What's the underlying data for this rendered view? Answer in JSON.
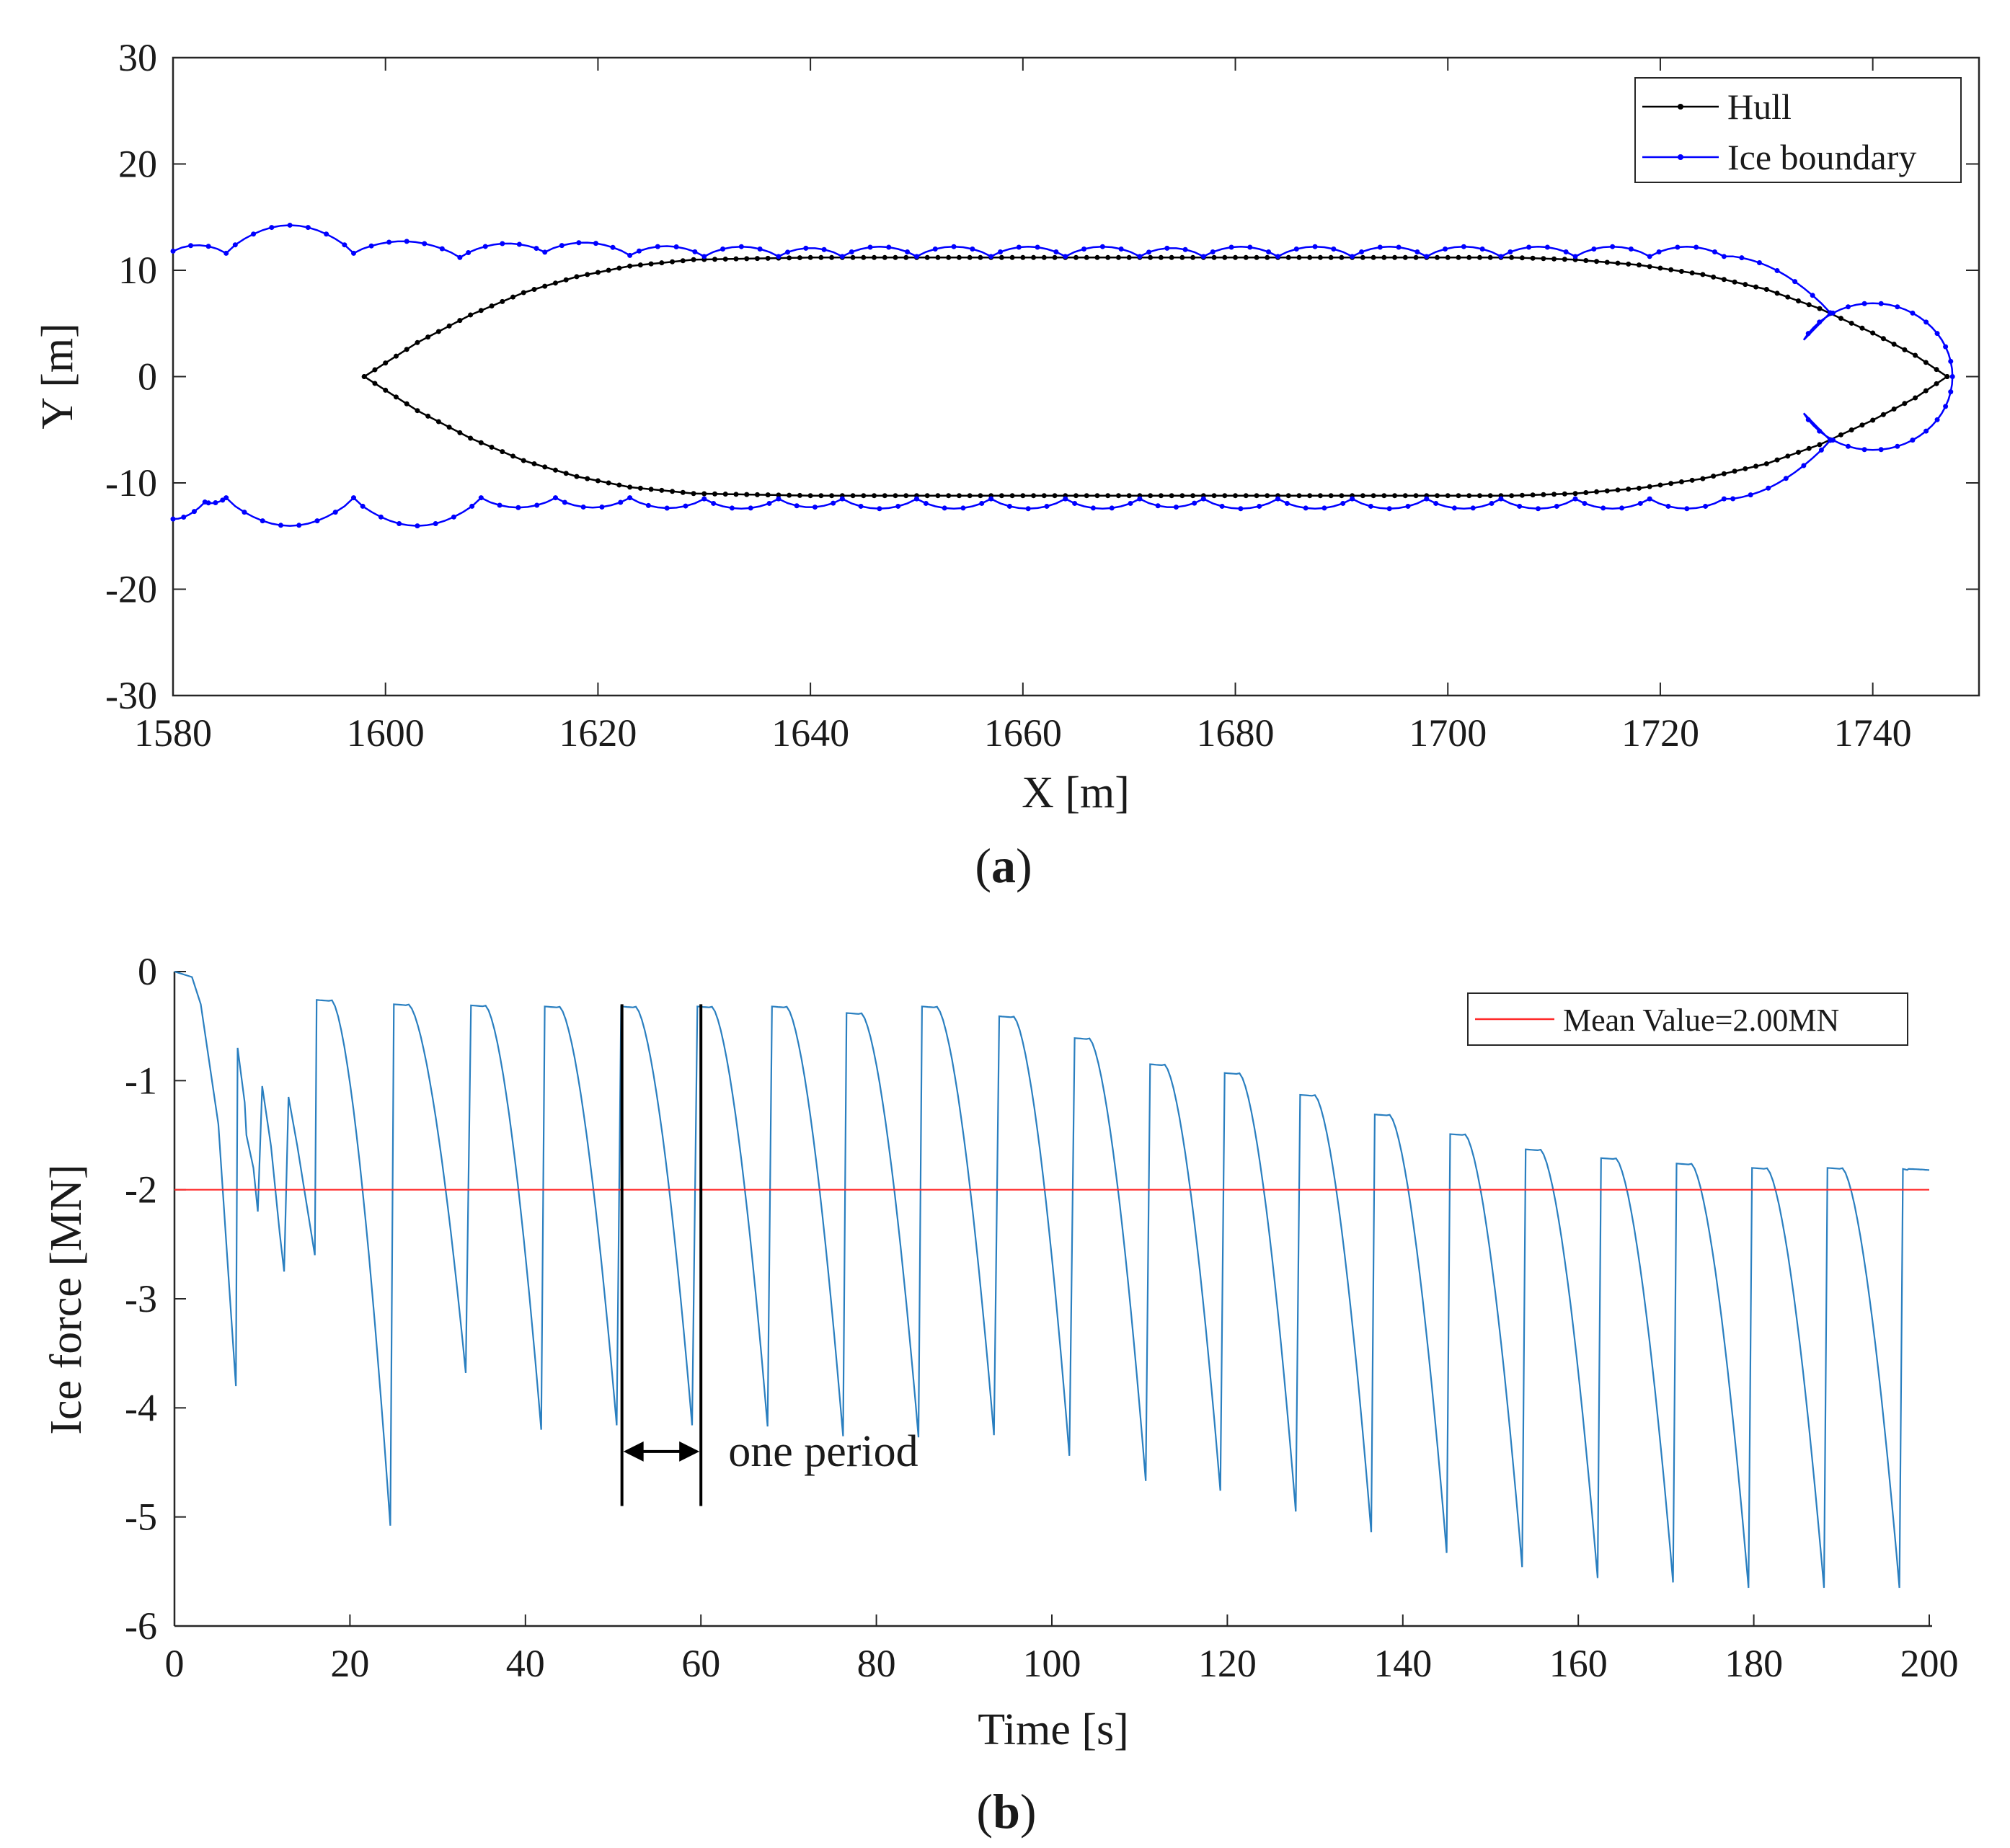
{
  "chart_data": [
    {
      "id": "a",
      "type": "line",
      "panel_label_open": "(",
      "panel_label_letter": "a",
      "panel_label_close": ")",
      "xlabel": "X [m]",
      "ylabel": "Y [m]",
      "xlim": [
        1580,
        1750
      ],
      "ylim": [
        -30,
        30
      ],
      "xticks": [
        1580,
        1600,
        1620,
        1640,
        1660,
        1680,
        1700,
        1720,
        1740
      ],
      "yticks": [
        -30,
        -20,
        -10,
        0,
        10,
        20,
        30
      ],
      "legend_position": "top-right",
      "series": [
        {
          "name": "Hull",
          "color": "#000000",
          "markers": true,
          "description": "Symmetric hull outline: pointed stern at x=1598, parallel mid-body at |y|=11.2 from x=1629 to x=1706, pointed bow at x=1747",
          "upper_points": [
            [
              1598,
              0
            ],
            [
              1603,
              3.2
            ],
            [
              1608,
              5.8
            ],
            [
              1613,
              7.9
            ],
            [
              1618,
              9.4
            ],
            [
              1623,
              10.4
            ],
            [
              1629,
              11.0
            ],
            [
              1640,
              11.2
            ],
            [
              1706,
              11.2
            ],
            [
              1712,
              11.0
            ],
            [
              1718,
              10.5
            ],
            [
              1724,
              9.6
            ],
            [
              1730,
              8.2
            ],
            [
              1735,
              6.4
            ],
            [
              1740,
              4.1
            ],
            [
              1744,
              2.0
            ],
            [
              1747,
              0
            ]
          ]
        },
        {
          "name": "Ice boundary",
          "color": "#0000ff",
          "markers": true,
          "description": "Broken ice channel edge made of circular arcs (cusps) along both sides of the hull, large semicircle around bow",
          "upper_cusps": [
            1580,
            1585,
            1597,
            1607,
            1615,
            1623,
            1630,
            1637,
            1643,
            1650,
            1657,
            1664,
            1671,
            1677,
            1684,
            1691,
            1698,
            1705,
            1712,
            1719,
            1726,
            1736
          ],
          "upper_cusp_y": [
            11.8,
            11.6,
            11.6,
            11.2,
            11.7,
            11.4,
            11.3,
            11.3,
            11.3,
            11.3,
            11.3,
            11.3,
            11.3,
            11.3,
            11.3,
            11.3,
            11.3,
            11.3,
            11.3,
            11.3,
            11.3,
            6.0
          ],
          "lower_cusps": [
            1580,
            1583,
            1585,
            1597,
            1609,
            1616,
            1623,
            1630,
            1637,
            1643,
            1650,
            1657,
            1664,
            1671,
            1677,
            1684,
            1691,
            1698,
            1705,
            1712,
            1719,
            1726,
            1736
          ],
          "lower_cusp_y": [
            -13.4,
            -11.8,
            -11.4,
            -11.4,
            -11.4,
            -11.4,
            -11.4,
            -11.5,
            -11.5,
            -11.5,
            -11.5,
            -11.5,
            -11.5,
            -11.5,
            -11.5,
            -11.5,
            -11.5,
            -11.5,
            -11.5,
            -11.5,
            -11.5,
            -11.5,
            -6.0
          ],
          "bow_arc_peak": [
            1740,
            6.9
          ],
          "bow_arc_tip": [
            1747.5,
            0
          ]
        }
      ]
    },
    {
      "id": "b",
      "type": "line",
      "panel_label_open": "(",
      "panel_label_letter": "b",
      "panel_label_close": ")",
      "xlabel": "Time [s]",
      "ylabel": "Ice force [MN]",
      "xlim": [
        0,
        200
      ],
      "ylim": [
        -6,
        0
      ],
      "xticks": [
        0,
        20,
        40,
        60,
        80,
        100,
        120,
        140,
        160,
        180,
        200
      ],
      "yticks": [
        0,
        -1,
        -2,
        -3,
        -4,
        -5,
        -6
      ],
      "legend_position": "top-right",
      "series": [
        {
          "name": "Ice force",
          "color": "#2a7fc0",
          "description": "Periodic sawtooth ice force; each cycle rises sharply to a plateau then decays to a trough",
          "cycles": [
            {
              "t_start": 16.2,
              "plateau": -0.26,
              "t_trough": 24.6,
              "trough": -5.08
            },
            {
              "t_start": 25.0,
              "plateau": -0.3,
              "t_trough": 33.2,
              "trough": -3.68
            },
            {
              "t_start": 33.8,
              "plateau": -0.31,
              "t_trough": 41.8,
              "trough": -4.2
            },
            {
              "t_start": 42.2,
              "plateau": -0.32,
              "t_trough": 50.4,
              "trough": -4.16
            },
            {
              "t_start": 50.9,
              "plateau": -0.32,
              "t_trough": 59.0,
              "trough": -4.16
            },
            {
              "t_start": 59.6,
              "plateau": -0.32,
              "t_trough": 67.6,
              "trough": -4.17
            },
            {
              "t_start": 68.1,
              "plateau": -0.32,
              "t_trough": 76.2,
              "trough": -4.26
            },
            {
              "t_start": 76.6,
              "plateau": -0.38,
              "t_trough": 84.8,
              "trough": -4.27
            },
            {
              "t_start": 85.2,
              "plateau": -0.32,
              "t_trough": 93.4,
              "trough": -4.25
            },
            {
              "t_start": 94.0,
              "plateau": -0.41,
              "t_trough": 102.0,
              "trough": -4.44
            },
            {
              "t_start": 102.6,
              "plateau": -0.61,
              "t_trough": 110.7,
              "trough": -4.67
            },
            {
              "t_start": 111.2,
              "plateau": -0.85,
              "t_trough": 119.2,
              "trough": -4.76
            },
            {
              "t_start": 119.7,
              "plateau": -0.93,
              "t_trough": 127.8,
              "trough": -4.95
            },
            {
              "t_start": 128.3,
              "plateau": -1.13,
              "t_trough": 136.4,
              "trough": -5.14
            },
            {
              "t_start": 136.8,
              "plateau": -1.31,
              "t_trough": 145.0,
              "trough": -5.33
            },
            {
              "t_start": 145.4,
              "plateau": -1.49,
              "t_trough": 153.6,
              "trough": -5.46
            },
            {
              "t_start": 154.0,
              "plateau": -1.63,
              "t_trough": 162.2,
              "trough": -5.56
            },
            {
              "t_start": 162.6,
              "plateau": -1.71,
              "t_trough": 170.8,
              "trough": -5.6
            },
            {
              "t_start": 171.2,
              "plateau": -1.76,
              "t_trough": 179.4,
              "trough": -5.65
            },
            {
              "t_start": 179.8,
              "plateau": -1.8,
              "t_trough": 188.0,
              "trough": -5.65
            },
            {
              "t_start": 188.4,
              "plateau": -1.8,
              "t_trough": 196.6,
              "trough": -5.65
            },
            {
              "t_start": 197.0,
              "plateau": -1.81,
              "t_trough": 200.0,
              "trough": -1.82
            }
          ],
          "initial_segment": [
            [
              0,
              0
            ],
            [
              2,
              -0.05
            ],
            [
              3,
              -0.3
            ],
            [
              5,
              -1.4
            ],
            [
              6,
              -2.6
            ],
            [
              7,
              -3.8
            ],
            [
              7.2,
              -0.7
            ],
            [
              8,
              -1.2
            ],
            [
              8.2,
              -1.5
            ],
            [
              9,
              -1.8
            ],
            [
              9.5,
              -2.2
            ],
            [
              10,
              -1.05
            ],
            [
              11,
              -1.6
            ],
            [
              12,
              -2.4
            ],
            [
              12.5,
              -2.75
            ],
            [
              13,
              -1.15
            ],
            [
              14,
              -1.6
            ],
            [
              15,
              -2.1
            ],
            [
              16,
              -2.6
            ],
            [
              16.2,
              -0.26
            ]
          ]
        },
        {
          "name": "Mean Value=2.00MN",
          "color": "#ff2a2a",
          "y": -2.0
        }
      ],
      "annotation": {
        "text": "one period",
        "t_left": 51.0,
        "t_right": 60.0,
        "y_arrow": -4.4,
        "y_bar_top": -0.3,
        "y_bar_bottom": -4.9
      }
    }
  ]
}
